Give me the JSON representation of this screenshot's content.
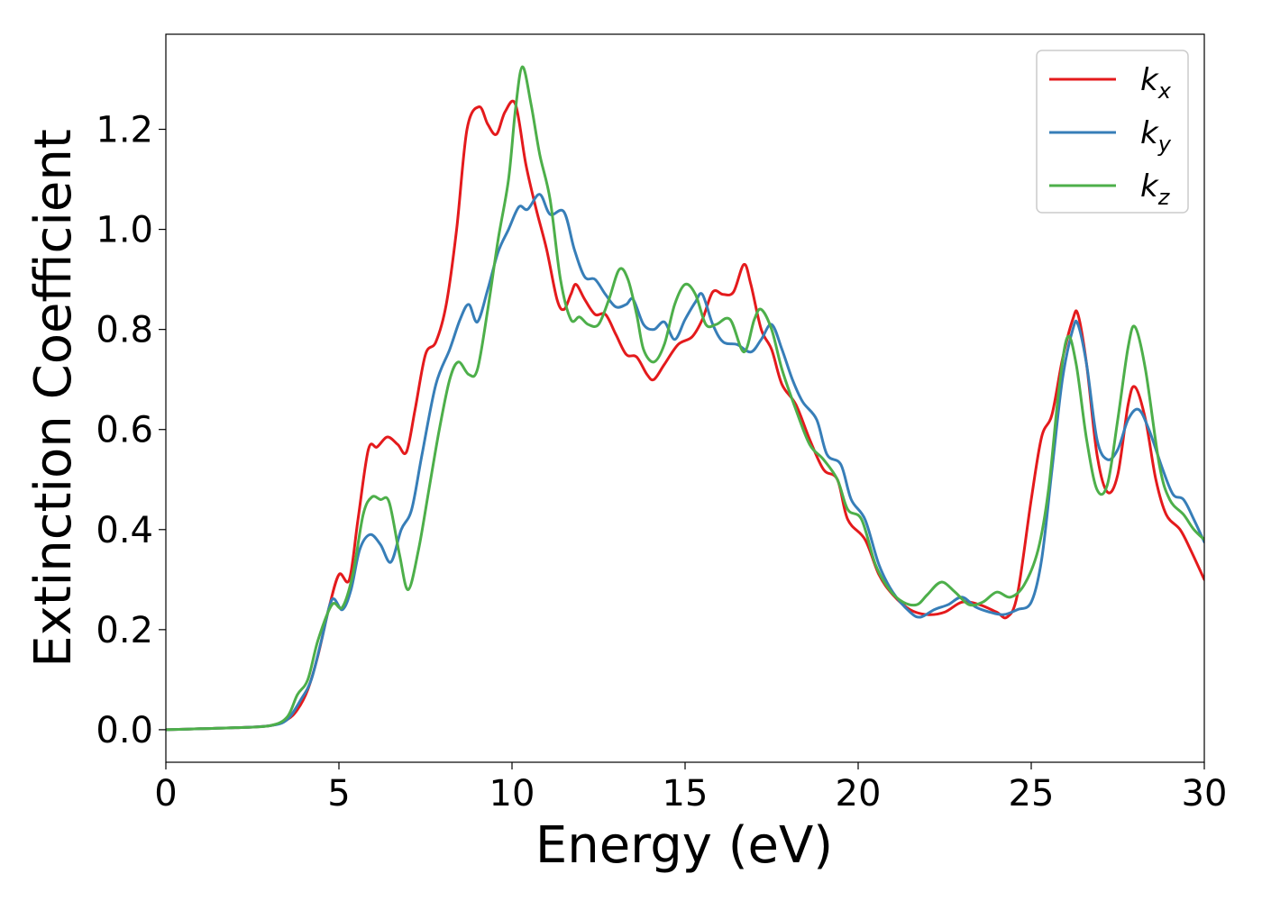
{
  "chart_data": {
    "type": "line",
    "title": "",
    "xlabel": "Energy (eV)",
    "ylabel": "Extinction Coefficient",
    "xlim": [
      0,
      30
    ],
    "ylim": [
      -0.065,
      1.39
    ],
    "xticks": [
      0,
      5,
      10,
      15,
      20,
      25,
      30
    ],
    "yticks": [
      0.0,
      0.2,
      0.4,
      0.6,
      0.8,
      1.0,
      1.2
    ],
    "xtick_labels": [
      "0",
      "5",
      "10",
      "15",
      "20",
      "25",
      "30"
    ],
    "ytick_labels": [
      "0.0",
      "0.2",
      "0.4",
      "0.6",
      "0.8",
      "1.0",
      "1.2"
    ],
    "grid": false,
    "legend_position": "top-right",
    "series": [
      {
        "name": "k_x",
        "label_main": "k",
        "label_sub": "x",
        "color": "#e41a1c",
        "points": [
          [
            0,
            0.0
          ],
          [
            1,
            0.002
          ],
          [
            2,
            0.004
          ],
          [
            3,
            0.008
          ],
          [
            3.5,
            0.02
          ],
          [
            3.8,
            0.04
          ],
          [
            4.1,
            0.08
          ],
          [
            4.4,
            0.15
          ],
          [
            4.7,
            0.24
          ],
          [
            5.0,
            0.31
          ],
          [
            5.3,
            0.3
          ],
          [
            5.55,
            0.42
          ],
          [
            5.85,
            0.56
          ],
          [
            6.1,
            0.565
          ],
          [
            6.4,
            0.585
          ],
          [
            6.7,
            0.57
          ],
          [
            6.95,
            0.555
          ],
          [
            7.2,
            0.64
          ],
          [
            7.5,
            0.75
          ],
          [
            7.8,
            0.775
          ],
          [
            8.1,
            0.85
          ],
          [
            8.4,
            1.0
          ],
          [
            8.7,
            1.2
          ],
          [
            9.05,
            1.245
          ],
          [
            9.3,
            1.21
          ],
          [
            9.55,
            1.19
          ],
          [
            9.8,
            1.235
          ],
          [
            10.1,
            1.25
          ],
          [
            10.4,
            1.13
          ],
          [
            10.7,
            1.04
          ],
          [
            11.0,
            0.96
          ],
          [
            11.3,
            0.86
          ],
          [
            11.5,
            0.84
          ],
          [
            11.7,
            0.87
          ],
          [
            11.85,
            0.89
          ],
          [
            12.1,
            0.86
          ],
          [
            12.4,
            0.83
          ],
          [
            12.7,
            0.83
          ],
          [
            13.0,
            0.79
          ],
          [
            13.3,
            0.75
          ],
          [
            13.6,
            0.745
          ],
          [
            13.9,
            0.71
          ],
          [
            14.1,
            0.7
          ],
          [
            14.4,
            0.73
          ],
          [
            14.8,
            0.77
          ],
          [
            15.2,
            0.785
          ],
          [
            15.5,
            0.82
          ],
          [
            15.8,
            0.875
          ],
          [
            16.1,
            0.87
          ],
          [
            16.4,
            0.875
          ],
          [
            16.7,
            0.93
          ],
          [
            16.9,
            0.89
          ],
          [
            17.2,
            0.8
          ],
          [
            17.5,
            0.76
          ],
          [
            17.8,
            0.69
          ],
          [
            18.2,
            0.65
          ],
          [
            18.6,
            0.58
          ],
          [
            19.0,
            0.52
          ],
          [
            19.4,
            0.5
          ],
          [
            19.7,
            0.42
          ],
          [
            20.2,
            0.38
          ],
          [
            20.6,
            0.31
          ],
          [
            21.0,
            0.27
          ],
          [
            21.5,
            0.24
          ],
          [
            22.0,
            0.23
          ],
          [
            22.5,
            0.235
          ],
          [
            23.0,
            0.255
          ],
          [
            23.5,
            0.25
          ],
          [
            24.0,
            0.235
          ],
          [
            24.3,
            0.225
          ],
          [
            24.6,
            0.27
          ],
          [
            25.0,
            0.46
          ],
          [
            25.3,
            0.585
          ],
          [
            25.6,
            0.63
          ],
          [
            25.9,
            0.74
          ],
          [
            26.2,
            0.82
          ],
          [
            26.35,
            0.83
          ],
          [
            26.6,
            0.73
          ],
          [
            26.9,
            0.55
          ],
          [
            27.2,
            0.475
          ],
          [
            27.5,
            0.51
          ],
          [
            27.8,
            0.65
          ],
          [
            28.0,
            0.685
          ],
          [
            28.3,
            0.62
          ],
          [
            28.6,
            0.5
          ],
          [
            28.9,
            0.43
          ],
          [
            29.3,
            0.4
          ],
          [
            29.6,
            0.36
          ],
          [
            30.0,
            0.3
          ]
        ]
      },
      {
        "name": "k_y",
        "label_main": "k",
        "label_sub": "y",
        "color": "#377eb8",
        "points": [
          [
            0,
            0.0
          ],
          [
            1,
            0.002
          ],
          [
            2,
            0.004
          ],
          [
            3,
            0.008
          ],
          [
            3.5,
            0.02
          ],
          [
            3.9,
            0.06
          ],
          [
            4.2,
            0.1
          ],
          [
            4.5,
            0.18
          ],
          [
            4.8,
            0.26
          ],
          [
            5.1,
            0.24
          ],
          [
            5.35,
            0.28
          ],
          [
            5.6,
            0.36
          ],
          [
            5.9,
            0.39
          ],
          [
            6.2,
            0.37
          ],
          [
            6.5,
            0.335
          ],
          [
            6.8,
            0.4
          ],
          [
            7.1,
            0.44
          ],
          [
            7.4,
            0.55
          ],
          [
            7.8,
            0.69
          ],
          [
            8.2,
            0.76
          ],
          [
            8.5,
            0.82
          ],
          [
            8.75,
            0.85
          ],
          [
            9.0,
            0.815
          ],
          [
            9.3,
            0.88
          ],
          [
            9.6,
            0.955
          ],
          [
            9.9,
            1.0
          ],
          [
            10.2,
            1.045
          ],
          [
            10.45,
            1.04
          ],
          [
            10.8,
            1.07
          ],
          [
            11.1,
            1.03
          ],
          [
            11.5,
            1.035
          ],
          [
            11.8,
            0.96
          ],
          [
            12.1,
            0.905
          ],
          [
            12.4,
            0.9
          ],
          [
            12.7,
            0.87
          ],
          [
            13.0,
            0.845
          ],
          [
            13.3,
            0.85
          ],
          [
            13.5,
            0.86
          ],
          [
            13.8,
            0.81
          ],
          [
            14.1,
            0.8
          ],
          [
            14.4,
            0.815
          ],
          [
            14.7,
            0.78
          ],
          [
            15.0,
            0.82
          ],
          [
            15.3,
            0.855
          ],
          [
            15.5,
            0.87
          ],
          [
            15.8,
            0.81
          ],
          [
            16.1,
            0.775
          ],
          [
            16.5,
            0.77
          ],
          [
            16.9,
            0.755
          ],
          [
            17.2,
            0.78
          ],
          [
            17.5,
            0.81
          ],
          [
            17.8,
            0.76
          ],
          [
            18.1,
            0.7
          ],
          [
            18.4,
            0.655
          ],
          [
            18.8,
            0.62
          ],
          [
            19.1,
            0.55
          ],
          [
            19.5,
            0.53
          ],
          [
            19.8,
            0.46
          ],
          [
            20.2,
            0.42
          ],
          [
            20.6,
            0.33
          ],
          [
            21.0,
            0.275
          ],
          [
            21.5,
            0.235
          ],
          [
            21.8,
            0.225
          ],
          [
            22.2,
            0.24
          ],
          [
            22.6,
            0.25
          ],
          [
            23.0,
            0.265
          ],
          [
            23.4,
            0.245
          ],
          [
            23.8,
            0.235
          ],
          [
            24.2,
            0.23
          ],
          [
            24.6,
            0.24
          ],
          [
            25.0,
            0.255
          ],
          [
            25.3,
            0.34
          ],
          [
            25.6,
            0.52
          ],
          [
            25.9,
            0.7
          ],
          [
            26.2,
            0.8
          ],
          [
            26.35,
            0.81
          ],
          [
            26.6,
            0.73
          ],
          [
            26.9,
            0.58
          ],
          [
            27.2,
            0.54
          ],
          [
            27.5,
            0.56
          ],
          [
            27.8,
            0.62
          ],
          [
            28.1,
            0.64
          ],
          [
            28.4,
            0.6
          ],
          [
            28.8,
            0.52
          ],
          [
            29.1,
            0.47
          ],
          [
            29.4,
            0.46
          ],
          [
            29.7,
            0.42
          ],
          [
            30.0,
            0.375
          ]
        ]
      },
      {
        "name": "k_z",
        "label_main": "k",
        "label_sub": "z",
        "color": "#4daf4a",
        "points": [
          [
            0,
            0.0
          ],
          [
            1,
            0.002
          ],
          [
            2,
            0.004
          ],
          [
            3,
            0.008
          ],
          [
            3.5,
            0.025
          ],
          [
            3.8,
            0.07
          ],
          [
            4.1,
            0.1
          ],
          [
            4.4,
            0.18
          ],
          [
            4.8,
            0.25
          ],
          [
            5.1,
            0.245
          ],
          [
            5.4,
            0.31
          ],
          [
            5.7,
            0.43
          ],
          [
            5.95,
            0.465
          ],
          [
            6.2,
            0.46
          ],
          [
            6.45,
            0.455
          ],
          [
            6.75,
            0.35
          ],
          [
            7.0,
            0.28
          ],
          [
            7.3,
            0.36
          ],
          [
            7.6,
            0.48
          ],
          [
            7.9,
            0.6
          ],
          [
            8.2,
            0.7
          ],
          [
            8.45,
            0.735
          ],
          [
            8.75,
            0.71
          ],
          [
            9.0,
            0.72
          ],
          [
            9.3,
            0.84
          ],
          [
            9.6,
            0.98
          ],
          [
            9.9,
            1.1
          ],
          [
            10.1,
            1.24
          ],
          [
            10.3,
            1.325
          ],
          [
            10.55,
            1.25
          ],
          [
            10.8,
            1.15
          ],
          [
            11.1,
            1.06
          ],
          [
            11.4,
            0.9
          ],
          [
            11.7,
            0.82
          ],
          [
            11.95,
            0.825
          ],
          [
            12.2,
            0.81
          ],
          [
            12.5,
            0.81
          ],
          [
            12.8,
            0.86
          ],
          [
            13.1,
            0.92
          ],
          [
            13.35,
            0.9
          ],
          [
            13.6,
            0.83
          ],
          [
            13.8,
            0.76
          ],
          [
            14.1,
            0.735
          ],
          [
            14.4,
            0.77
          ],
          [
            14.7,
            0.85
          ],
          [
            15.0,
            0.89
          ],
          [
            15.3,
            0.87
          ],
          [
            15.6,
            0.81
          ],
          [
            15.9,
            0.81
          ],
          [
            16.3,
            0.82
          ],
          [
            16.7,
            0.755
          ],
          [
            17.0,
            0.82
          ],
          [
            17.2,
            0.84
          ],
          [
            17.5,
            0.8
          ],
          [
            17.8,
            0.72
          ],
          [
            18.2,
            0.64
          ],
          [
            18.6,
            0.57
          ],
          [
            19.0,
            0.54
          ],
          [
            19.4,
            0.5
          ],
          [
            19.7,
            0.44
          ],
          [
            20.1,
            0.42
          ],
          [
            20.5,
            0.33
          ],
          [
            20.9,
            0.28
          ],
          [
            21.3,
            0.255
          ],
          [
            21.7,
            0.25
          ],
          [
            22.0,
            0.27
          ],
          [
            22.4,
            0.295
          ],
          [
            22.8,
            0.275
          ],
          [
            23.2,
            0.25
          ],
          [
            23.6,
            0.255
          ],
          [
            24.0,
            0.275
          ],
          [
            24.4,
            0.265
          ],
          [
            24.8,
            0.29
          ],
          [
            25.2,
            0.36
          ],
          [
            25.5,
            0.48
          ],
          [
            25.8,
            0.68
          ],
          [
            26.05,
            0.785
          ],
          [
            26.3,
            0.73
          ],
          [
            26.6,
            0.58
          ],
          [
            26.9,
            0.48
          ],
          [
            27.2,
            0.49
          ],
          [
            27.5,
            0.62
          ],
          [
            27.8,
            0.765
          ],
          [
            28.0,
            0.805
          ],
          [
            28.3,
            0.72
          ],
          [
            28.7,
            0.53
          ],
          [
            29.0,
            0.46
          ],
          [
            29.4,
            0.43
          ],
          [
            29.7,
            0.4
          ],
          [
            30.0,
            0.38
          ]
        ]
      }
    ]
  }
}
